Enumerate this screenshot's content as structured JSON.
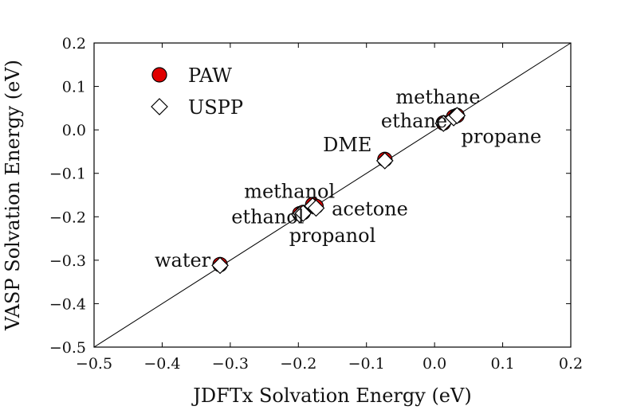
{
  "chart_data": {
    "type": "scatter",
    "xlabel": "JDFTx Solvation Energy (eV)",
    "ylabel": "VASP Solvation Energy (eV)",
    "xlim": [
      -0.5,
      0.2
    ],
    "ylim": [
      -0.5,
      0.2
    ],
    "xticks": [
      "−0.5",
      "−0.4",
      "−0.3",
      "−0.2",
      "−0.1",
      "0.0",
      "0.1",
      "0.2"
    ],
    "yticks": [
      "−0.5",
      "−0.4",
      "−0.3",
      "−0.2",
      "−0.1",
      "0.0",
      "0.1",
      "0.2"
    ],
    "xtick_values": [
      -0.5,
      -0.4,
      -0.3,
      -0.2,
      -0.1,
      0.0,
      0.1,
      0.2
    ],
    "ytick_values": [
      -0.5,
      -0.4,
      -0.3,
      -0.2,
      -0.1,
      0.0,
      0.1,
      0.2
    ],
    "grid": false,
    "reference_line": "y = x",
    "legend_position": "top-left",
    "series": [
      {
        "name": "PAW",
        "marker": "circle",
        "color": "#e00000",
        "points": [
          {
            "label": "water",
            "x": -0.315,
            "y": -0.31
          },
          {
            "label": "ethanol",
            "x": -0.198,
            "y": -0.193
          },
          {
            "label": "propanol",
            "x": -0.193,
            "y": -0.19
          },
          {
            "label": "methanol",
            "x": -0.179,
            "y": -0.172
          },
          {
            "label": "acetone",
            "x": -0.174,
            "y": -0.176
          },
          {
            "label": "DME",
            "x": -0.073,
            "y": -0.068
          },
          {
            "label": "ethane",
            "x": 0.013,
            "y": 0.016
          },
          {
            "label": "methane",
            "x": 0.028,
            "y": 0.03
          },
          {
            "label": "propane",
            "x": 0.033,
            "y": 0.033
          }
        ]
      },
      {
        "name": "USPP",
        "marker": "diamond",
        "color": "#ffffff",
        "points": [
          {
            "label": "water",
            "x": -0.315,
            "y": -0.312
          },
          {
            "label": "ethanol",
            "x": -0.198,
            "y": -0.195
          },
          {
            "label": "propanol",
            "x": -0.193,
            "y": -0.192
          },
          {
            "label": "methanol",
            "x": -0.179,
            "y": -0.175
          },
          {
            "label": "acetone",
            "x": -0.174,
            "y": -0.18
          },
          {
            "label": "DME",
            "x": -0.073,
            "y": -0.071
          },
          {
            "label": "ethane",
            "x": 0.013,
            "y": 0.015
          },
          {
            "label": "methane",
            "x": 0.028,
            "y": 0.028
          },
          {
            "label": "propane",
            "x": 0.033,
            "y": 0.033
          }
        ]
      }
    ],
    "annotations": [
      {
        "text": "methane",
        "x": 0.005,
        "y": 0.075,
        "anchor": "middle"
      },
      {
        "text": "ethane",
        "x": -0.03,
        "y": 0.02,
        "anchor": "middle"
      },
      {
        "text": "propane",
        "x": 0.098,
        "y": -0.015,
        "anchor": "middle"
      },
      {
        "text": "DME",
        "x": -0.128,
        "y": -0.035,
        "anchor": "middle"
      },
      {
        "text": "methanol",
        "x": -0.213,
        "y": -0.142,
        "anchor": "middle"
      },
      {
        "text": "ethanol",
        "x": -0.245,
        "y": -0.2,
        "anchor": "middle"
      },
      {
        "text": "acetone",
        "x": -0.095,
        "y": -0.182,
        "anchor": "middle"
      },
      {
        "text": "propanol",
        "x": -0.15,
        "y": -0.243,
        "anchor": "middle"
      },
      {
        "text": "water",
        "x": -0.37,
        "y": -0.3,
        "anchor": "middle"
      }
    ]
  }
}
